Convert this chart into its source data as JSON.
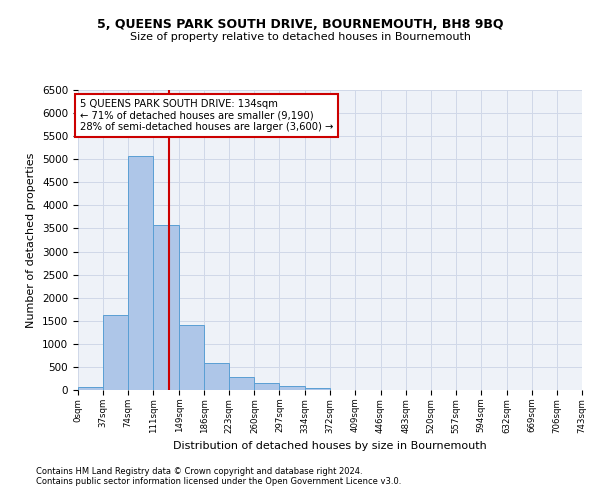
{
  "title1": "5, QUEENS PARK SOUTH DRIVE, BOURNEMOUTH, BH8 9BQ",
  "title2": "Size of property relative to detached houses in Bournemouth",
  "xlabel": "Distribution of detached houses by size in Bournemouth",
  "ylabel": "Number of detached properties",
  "footnote1": "Contains HM Land Registry data © Crown copyright and database right 2024.",
  "footnote2": "Contains public sector information licensed under the Open Government Licence v3.0.",
  "annotation_line1": "5 QUEENS PARK SOUTH DRIVE: 134sqm",
  "annotation_line2": "← 71% of detached houses are smaller (9,190)",
  "annotation_line3": "28% of semi-detached houses are larger (3,600) →",
  "bar_edges": [
    0,
    37,
    74,
    111,
    149,
    186,
    223,
    260,
    297,
    334,
    372,
    409,
    446,
    483,
    520,
    557,
    594,
    632,
    669,
    706,
    743
  ],
  "bar_heights": [
    75,
    1625,
    5075,
    3575,
    1400,
    575,
    280,
    150,
    80,
    50,
    0,
    0,
    0,
    0,
    0,
    0,
    0,
    0,
    0,
    0
  ],
  "bar_color": "#aec6e8",
  "bar_edge_color": "#5a9fd4",
  "vline_x": 134,
  "vline_color": "#cc0000",
  "ylim": [
    0,
    6500
  ],
  "yticks": [
    0,
    500,
    1000,
    1500,
    2000,
    2500,
    3000,
    3500,
    4000,
    4500,
    5000,
    5500,
    6000,
    6500
  ],
  "grid_color": "#d0d8e8",
  "bg_color": "#eef2f8",
  "annotation_box_color": "#cc0000"
}
